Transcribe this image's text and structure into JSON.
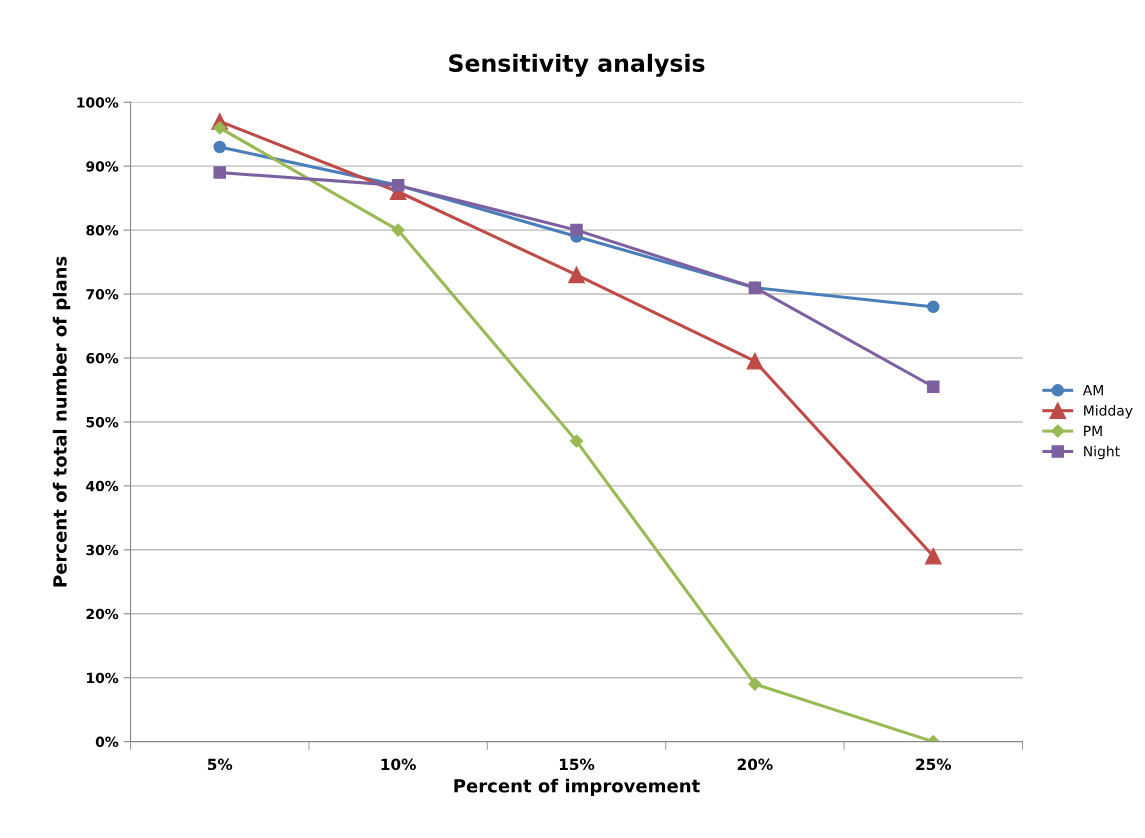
{
  "chart_data": {
    "type": "line",
    "title": "Sensitivity analysis",
    "xlabel": "Percent of improvement",
    "ylabel": "Percent of total number of plans",
    "categories": [
      "5%",
      "10%",
      "15%",
      "20%",
      "25%"
    ],
    "series": [
      {
        "name": "AM",
        "color": "#4a7ebb",
        "marker": "circle",
        "values": [
          93,
          87,
          79,
          71,
          68
        ]
      },
      {
        "name": "Midday",
        "color": "#be4b48",
        "marker": "triangle",
        "values": [
          97,
          86,
          73,
          59.5,
          29
        ]
      },
      {
        "name": "PM",
        "color": "#98b954",
        "marker": "diamond",
        "values": [
          96,
          80,
          47,
          9,
          0
        ]
      },
      {
        "name": "Night",
        "color": "#7d60a0",
        "marker": "square",
        "values": [
          89,
          87,
          80,
          71,
          55.5
        ]
      }
    ],
    "ylim": [
      0,
      100
    ],
    "yticks": [
      {
        "value": 0,
        "label": "0%"
      },
      {
        "value": 10,
        "label": "10%"
      },
      {
        "value": 20,
        "label": "20%"
      },
      {
        "value": 30,
        "label": "30%"
      },
      {
        "value": 40,
        "label": "40%"
      },
      {
        "value": 50,
        "label": "50%"
      },
      {
        "value": 60,
        "label": "60%"
      },
      {
        "value": 70,
        "label": "70%"
      },
      {
        "value": 80,
        "label": "80%"
      },
      {
        "value": 90,
        "label": "90%"
      },
      {
        "value": 100,
        "label": "100%"
      }
    ],
    "grid": "y",
    "legend": "right",
    "line_style": "solid"
  }
}
